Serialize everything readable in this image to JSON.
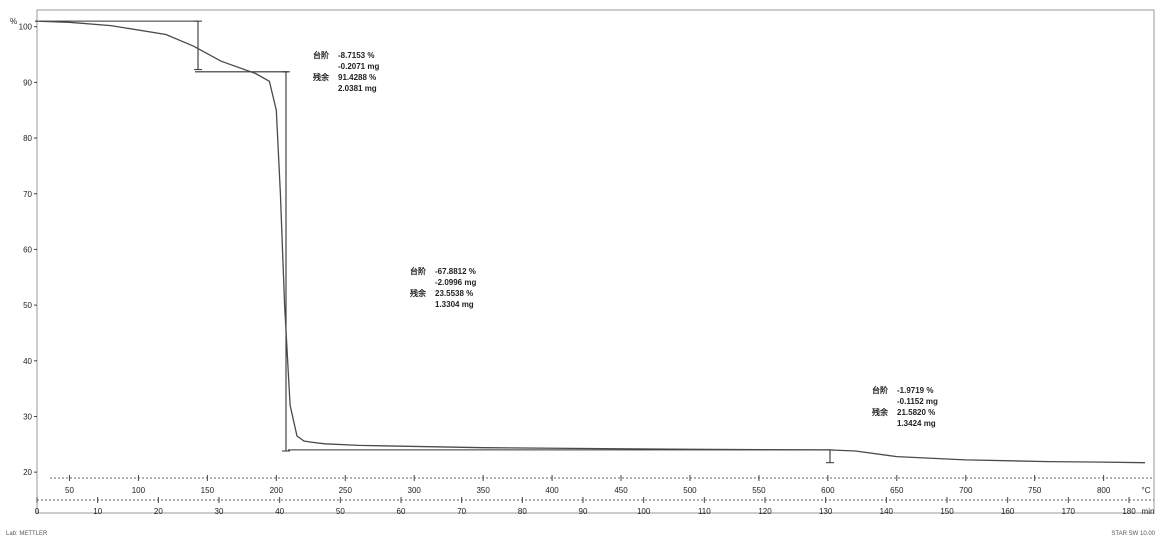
{
  "chart_data": {
    "type": "line",
    "y_unit": "%",
    "ylim": [
      15,
      103
    ],
    "y_ticks": [
      20,
      30,
      40,
      50,
      60,
      70,
      80,
      90,
      100
    ],
    "y_tick_labels": [
      "20",
      "30",
      "40",
      "50",
      "60",
      "70",
      "80",
      "90",
      "100"
    ],
    "temperature_unit": "°C",
    "temperature_ticks": [
      50,
      100,
      150,
      200,
      250,
      300,
      350,
      400,
      450,
      500,
      550,
      600,
      650,
      700,
      750,
      800
    ],
    "temperature_tick_labels": [
      "50",
      "100",
      "150",
      "200",
      "250",
      "300",
      "350",
      "400",
      "450",
      "500",
      "550",
      "600",
      "650",
      "700",
      "750",
      "800"
    ],
    "temperature_range": [
      25,
      830
    ],
    "time_unit": "min",
    "time_ticks": [
      0,
      10,
      20,
      30,
      40,
      50,
      60,
      70,
      80,
      90,
      100,
      110,
      120,
      130,
      140,
      150,
      160,
      170,
      180
    ],
    "time_tick_labels": [
      "0",
      "10",
      "20",
      "30",
      "40",
      "50",
      "60",
      "70",
      "80",
      "90",
      "100",
      "110",
      "120",
      "130",
      "140",
      "150",
      "160",
      "170",
      "180"
    ],
    "time_range": [
      0,
      180
    ],
    "grid": false,
    "series": [
      {
        "x_temp": [
          25,
          50,
          80,
          120,
          140,
          160,
          185,
          195,
          200,
          203,
          206,
          210,
          215,
          220,
          225,
          235,
          260,
          350,
          500,
          600,
          620,
          650,
          700,
          760,
          800,
          830
        ],
        "y": [
          101,
          100.8,
          100.2,
          98.6,
          96.5,
          93.8,
          91.6,
          90.2,
          85,
          70,
          50,
          32,
          26.5,
          25.6,
          25.4,
          25.1,
          24.8,
          24.4,
          24.1,
          24.0,
          23.8,
          22.8,
          22.2,
          21.9,
          21.8,
          21.7
        ]
      }
    ],
    "annotations": [
      {
        "label_1": "台阶",
        "label_2": "残余",
        "lines": [
          "-8.7153 %",
          "-0.2071 mg",
          "91.4288 %",
          "2.0381 mg"
        ]
      },
      {
        "label_1": "台阶",
        "label_2": "残余",
        "lines": [
          "-67.8812 %",
          "-2.0996 mg",
          "23.5538 %",
          "1.3304 mg"
        ]
      },
      {
        "label_1": "台阶",
        "label_2": "残余",
        "lines": [
          "-1.9719 %",
          "-0.1152 mg",
          "21.5820 %",
          "1.3424 mg"
        ]
      }
    ]
  },
  "footer": {
    "left": "Lab: METTLER",
    "right": "STAR SW 10.00"
  }
}
